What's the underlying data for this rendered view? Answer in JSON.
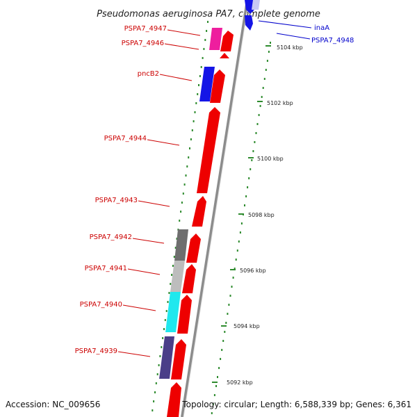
{
  "title": "Pseudomonas aeruginosa PA7, complete genome",
  "footer": {
    "accession": "Accession: NC_009656",
    "topology": "Topology: circular; Length: 6,588,339 bp; Genes: 6,361"
  },
  "colors": {
    "backbone": "#8c8c8c",
    "gc_tick": "#2e8b2e",
    "label_left": "#cc0000",
    "label_right": "#0000cc"
  },
  "scale_ticks": [
    {
      "label": "5104 kbp"
    },
    {
      "label": "5102 kbp"
    },
    {
      "label": "5100 kbp"
    },
    {
      "label": "5098 kbp"
    },
    {
      "label": "5096 kbp"
    },
    {
      "label": "5094 kbp"
    },
    {
      "label": "5092 kbp"
    }
  ],
  "gene_labels_left": [
    {
      "label": "PSPA7_4947"
    },
    {
      "label": "PSPA7_4946"
    },
    {
      "label": "pncB2"
    },
    {
      "label": "PSPA7_4944"
    },
    {
      "label": "PSPA7_4943"
    },
    {
      "label": "PSPA7_4942"
    },
    {
      "label": "PSPA7_4941"
    },
    {
      "label": "PSPA7_4940"
    },
    {
      "label": "PSPA7_4939"
    }
  ],
  "gene_labels_right": [
    {
      "label": "inaA"
    },
    {
      "label": "PSPA7_4948"
    }
  ],
  "cog_colors": [
    "#ee1e9e",
    "#1515e6",
    "#6e6e6e",
    "#bdbdbd",
    "#20e8ee",
    "#4a3e88",
    "#c8c8f4"
  ]
}
